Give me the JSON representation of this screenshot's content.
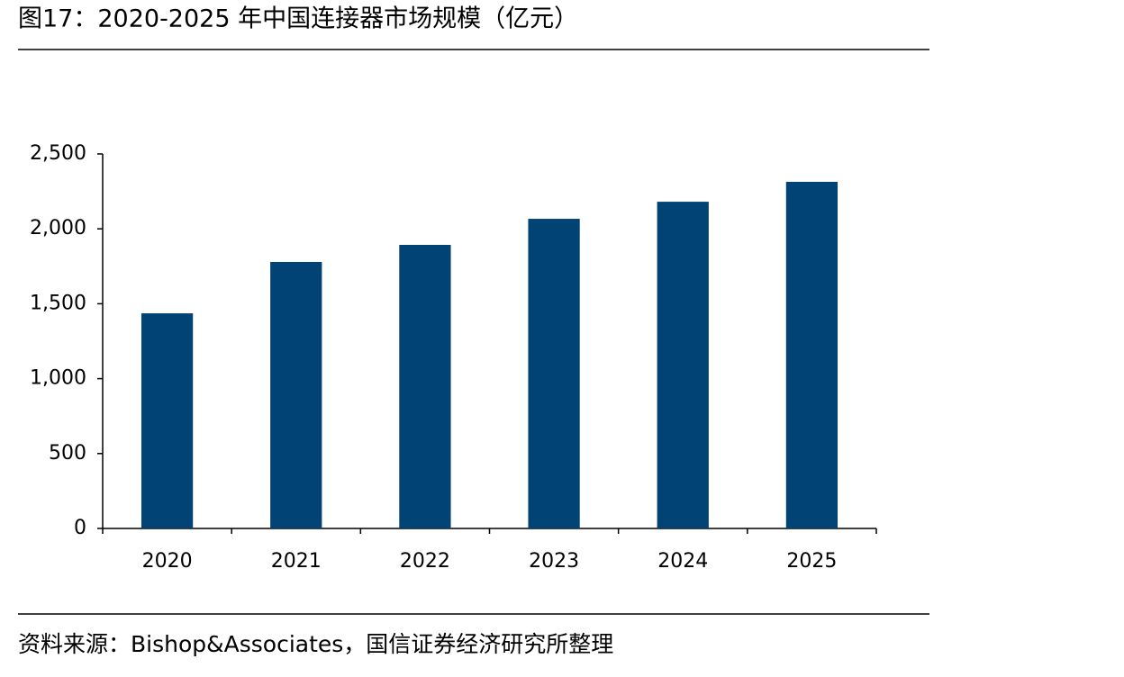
{
  "chart_data": {
    "type": "bar",
    "title": "图17：2020-2025 年中国连接器市场规模（亿元）",
    "source": "资料来源：Bishop&Associates，国信证券经济研究所整理",
    "categories": [
      "2020",
      "2021",
      "2022",
      "2023",
      "2024",
      "2025"
    ],
    "values": [
      1436,
      1779,
      1893,
      2067,
      2181,
      2314
    ],
    "color": "#004374",
    "ylim": [
      0,
      2500
    ],
    "yticks": [
      0,
      500,
      {
        "value": 1000,
        "label": "1,000"
      },
      {
        "value": 1500,
        "label": "1,500"
      },
      {
        "value": 2000,
        "label": "2,000"
      },
      {
        "value": 2500,
        "label": "2,500"
      }
    ],
    "grid": false
  }
}
